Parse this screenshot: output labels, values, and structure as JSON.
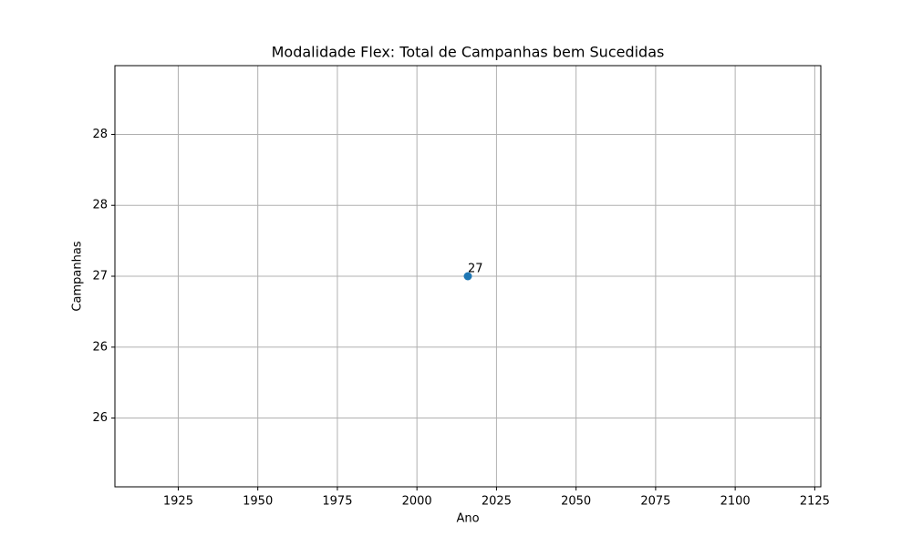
{
  "chart_data": {
    "type": "scatter",
    "title": "Modalidade Flex: Total de Campanhas bem Sucedidas",
    "x_label": "Ano",
    "y_label": "Campanhas",
    "series": [
      {
        "color": "#1f77b4",
        "x": [
          2016
        ],
        "values": [
          27
        ],
        "value_labels": [
          "27"
        ]
      }
    ],
    "xlim": [
      1905.1,
      2126.9
    ],
    "xticks": [
      1925,
      1950,
      1975,
      2000,
      2025,
      2050,
      2075,
      2100,
      2125
    ],
    "ylim": [
      25.515,
      28.485
    ],
    "yticks": [
      26,
      {
        "value": 26.5,
        "label": "26"
      },
      27,
      {
        "value": 27.5,
        "label": "28"
      },
      28
    ],
    "grid": true
  }
}
